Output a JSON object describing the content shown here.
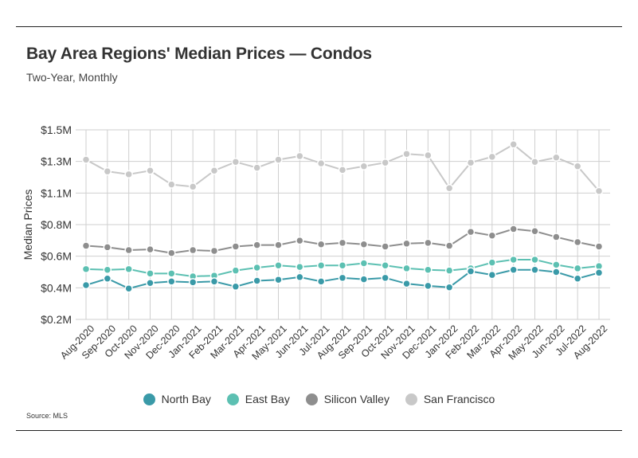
{
  "title": "Bay Area Regions' Median Prices — Condos",
  "subtitle": "Two-Year, Monthly",
  "source": "Source:  MLS",
  "chart_data": {
    "type": "line",
    "ylabel": "Median Prices",
    "ylim": [
      200000,
      1500000
    ],
    "y_ticks": [
      200000,
      400000,
      600000,
      800000,
      1100000,
      1300000,
      1500000
    ],
    "y_tick_labels": [
      "$0.2M",
      "$0.4M",
      "$0.6M",
      "$0.8M",
      "$1.1M",
      "$1.3M",
      "$1.5M"
    ],
    "categories": [
      "Aug-2020",
      "Sep-2020",
      "Oct-2020",
      "Nov-2020",
      "Dec-2020",
      "Jan-2021",
      "Feb-2021",
      "Mar-2021",
      "Apr-2021",
      "May-2021",
      "Jun-2021",
      "Jul-2021",
      "Aug-2021",
      "Sep-2021",
      "Oct-2021",
      "Nov-2021",
      "Dec-2021",
      "Jan-2022",
      "Feb-2022",
      "Mar-2022",
      "Apr-2022",
      "May-2022",
      "Jun-2022",
      "Jul-2022",
      "Aug-2022"
    ],
    "series": [
      {
        "name": "North Bay",
        "color": "#3a9aa8",
        "values": [
          435000,
          480000,
          412000,
          450000,
          460000,
          455000,
          460000,
          425000,
          465000,
          472000,
          490000,
          460000,
          485000,
          475000,
          485000,
          445000,
          430000,
          420000,
          530000,
          505000,
          540000,
          540000,
          525000,
          480000,
          520000
        ]
      },
      {
        "name": "East Bay",
        "color": "#5cc0b2",
        "values": [
          545000,
          540000,
          545000,
          515000,
          515000,
          495000,
          500000,
          535000,
          555000,
          570000,
          560000,
          570000,
          570000,
          585000,
          570000,
          550000,
          540000,
          535000,
          550000,
          590000,
          610000,
          610000,
          575000,
          550000,
          565000
        ]
      },
      {
        "name": "Silicon Valley",
        "color": "#8e8e8e",
        "values": [
          705000,
          695000,
          675000,
          680000,
          655000,
          675000,
          670000,
          700000,
          710000,
          710000,
          740000,
          715000,
          725000,
          715000,
          700000,
          720000,
          725000,
          705000,
          800000,
          775000,
          820000,
          805000,
          765000,
          730000,
          700000
        ]
      },
      {
        "name": "San Francisco",
        "color": "#c8c8c8",
        "values": [
          1295000,
          1215000,
          1195000,
          1220000,
          1125000,
          1110000,
          1220000,
          1280000,
          1240000,
          1295000,
          1320000,
          1270000,
          1225000,
          1250000,
          1275000,
          1335000,
          1325000,
          1100000,
          1275000,
          1315000,
          1400000,
          1280000,
          1310000,
          1250000,
          1080000
        ]
      }
    ]
  }
}
